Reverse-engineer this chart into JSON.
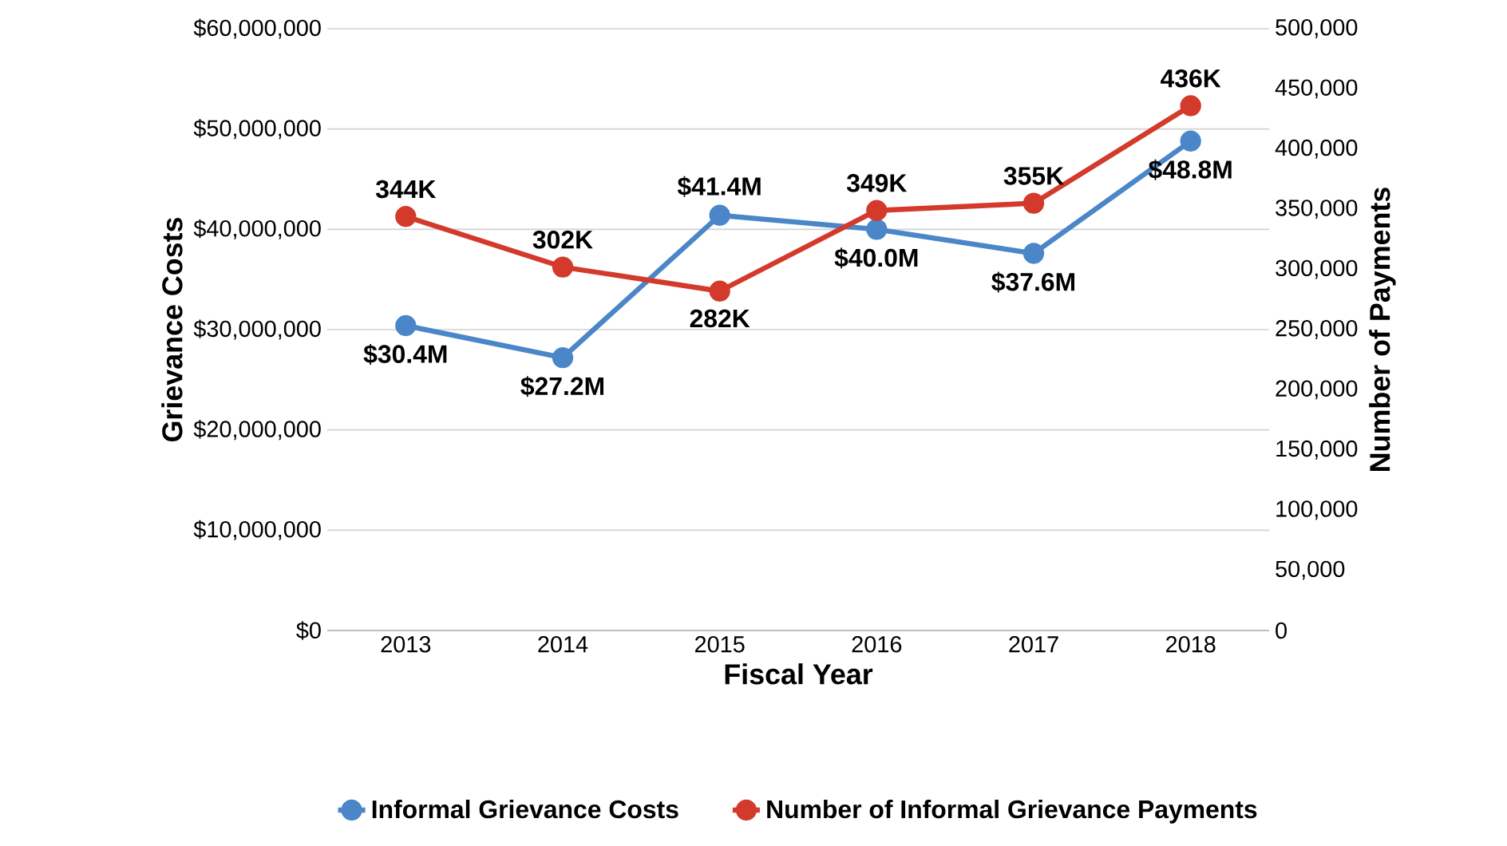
{
  "chart_data": {
    "type": "line",
    "xlabel": "Fiscal Year",
    "ylabel": "Grievance Costs",
    "y2label": "Number of Payments",
    "categories": [
      "2013",
      "2014",
      "2015",
      "2016",
      "2017",
      "2018"
    ],
    "series": [
      {
        "name": "Informal Grievance Costs",
        "color": "#4a86c8",
        "values": [
          30400000,
          27200000,
          41400000,
          40000000,
          37600000,
          48800000
        ],
        "value_labels": [
          "$30.4M",
          "$27.2M",
          "$41.4M",
          "$40.0M",
          "$37.6M",
          "$48.8M"
        ]
      },
      {
        "name": "Number of Informal Grievance Payments",
        "color": "#d33a2c",
        "axis": "y2",
        "values": [
          344000,
          302000,
          282000,
          349000,
          355000,
          436000
        ],
        "value_labels": [
          "344K",
          "302K",
          "282K",
          "349K",
          "355K",
          "436K"
        ]
      }
    ],
    "ylim": [
      0,
      60000000
    ],
    "yticks": [
      {
        "value": 0,
        "label": "$0"
      },
      {
        "value": 10000000,
        "label": "$10,000,000"
      },
      {
        "value": 20000000,
        "label": "$20,000,000"
      },
      {
        "value": 30000000,
        "label": "$30,000,000"
      },
      {
        "value": 40000000,
        "label": "$40,000,000"
      },
      {
        "value": 50000000,
        "label": "$50,000,000"
      },
      {
        "value": 60000000,
        "label": "$60,000,000"
      }
    ],
    "y2lim": [
      0,
      500000
    ],
    "y2ticks": [
      0,
      {
        "value": 50000,
        "label": "50,000"
      },
      {
        "value": 100000,
        "label": "100,000"
      },
      {
        "value": 150000,
        "label": "150,000"
      },
      {
        "value": 200000,
        "label": "200,000"
      },
      {
        "value": 250000,
        "label": "250,000"
      },
      {
        "value": 300000,
        "label": "300,000"
      },
      {
        "value": 350000,
        "label": "350,000"
      },
      {
        "value": 400000,
        "label": "400,000"
      },
      {
        "value": 450000,
        "label": "450,000"
      },
      {
        "value": 500000,
        "label": "500,000"
      }
    ],
    "grid": "y",
    "legend": "bottom",
    "marker": "circle",
    "line_style": "solid"
  }
}
